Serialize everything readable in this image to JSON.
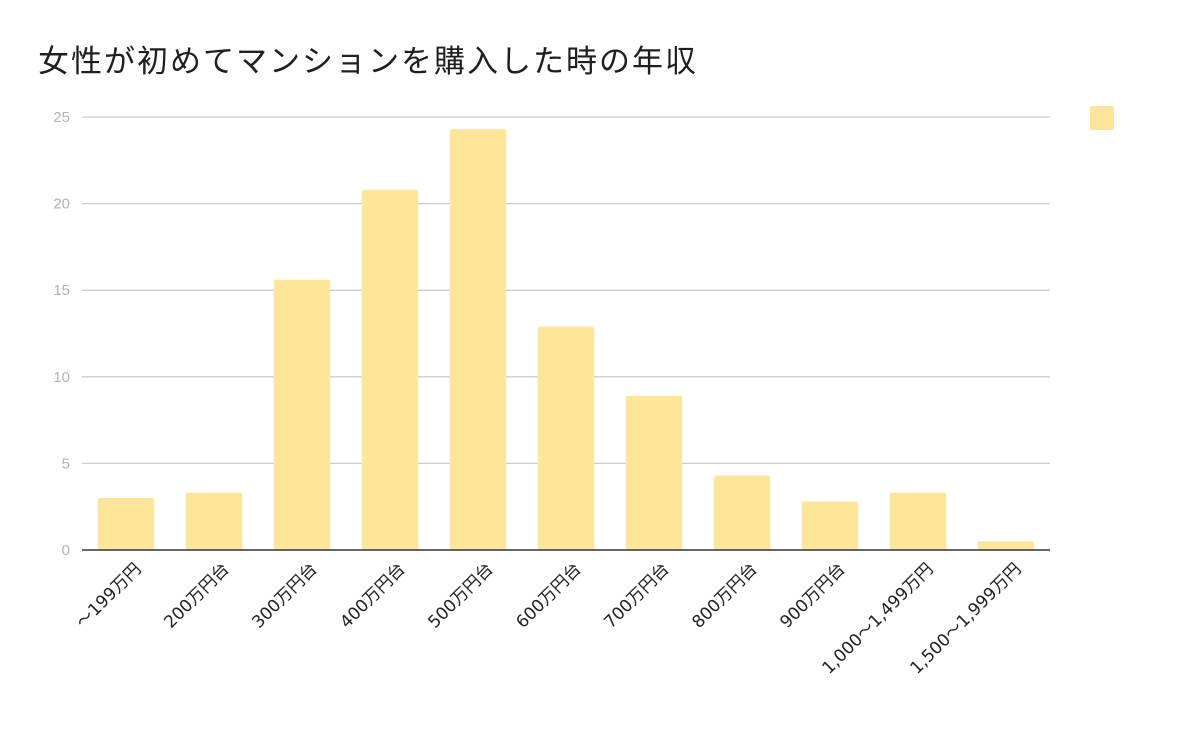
{
  "chart_data": {
    "type": "bar",
    "title": "女性が初めてマンションを購入した時の年収",
    "xlabel": "",
    "ylabel": "",
    "categories": [
      "～199万円",
      "200万円台",
      "300万円台",
      "400万円台",
      "500万円台",
      "600万円台",
      "700万円台",
      "800万円台",
      "900万円台",
      "1,000～1,499万円",
      "1,500～1,999万円"
    ],
    "values": [
      3.0,
      3.3,
      15.6,
      20.8,
      24.3,
      12.9,
      8.9,
      4.3,
      2.8,
      3.3,
      0.5
    ],
    "ylim": [
      0,
      25
    ],
    "yticks": [
      0,
      5,
      10,
      15,
      20,
      25
    ],
    "grid": true,
    "legend": "top-right",
    "series_color": "#fde59a"
  }
}
